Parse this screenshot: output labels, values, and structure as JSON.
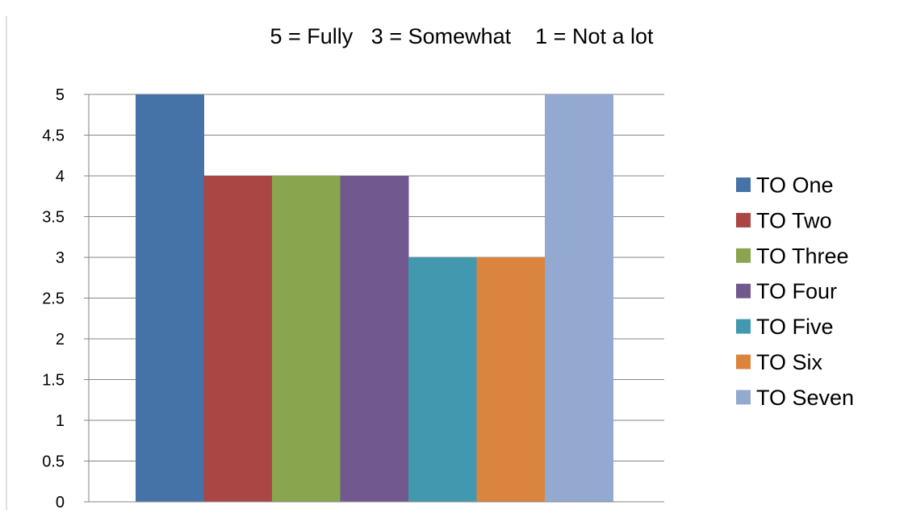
{
  "chart_data": {
    "type": "bar",
    "title": "5 = Fully   3 = Somewhat    1 = Not a lot",
    "xlabel": "",
    "ylabel": "",
    "ylim": [
      0,
      5
    ],
    "yticks": [
      "0",
      "0.5",
      "1",
      "1.5",
      "2",
      "2.5",
      "3",
      "3.5",
      "4",
      "4.5",
      "5"
    ],
    "grid": true,
    "legend_position": "right",
    "categories": [
      ""
    ],
    "series": [
      {
        "name": "TO One",
        "values": [
          5
        ],
        "color": "#4572A7"
      },
      {
        "name": "TO Two",
        "values": [
          4
        ],
        "color": "#AA4643"
      },
      {
        "name": "TO Three",
        "values": [
          4
        ],
        "color": "#89A54E"
      },
      {
        "name": "TO Four",
        "values": [
          4
        ],
        "color": "#71588F"
      },
      {
        "name": "TO Five",
        "values": [
          3
        ],
        "color": "#4198AF"
      },
      {
        "name": "TO Six",
        "values": [
          3
        ],
        "color": "#DB843D"
      },
      {
        "name": "TO Seven",
        "values": [
          5
        ],
        "color": "#93A9CF"
      }
    ]
  }
}
